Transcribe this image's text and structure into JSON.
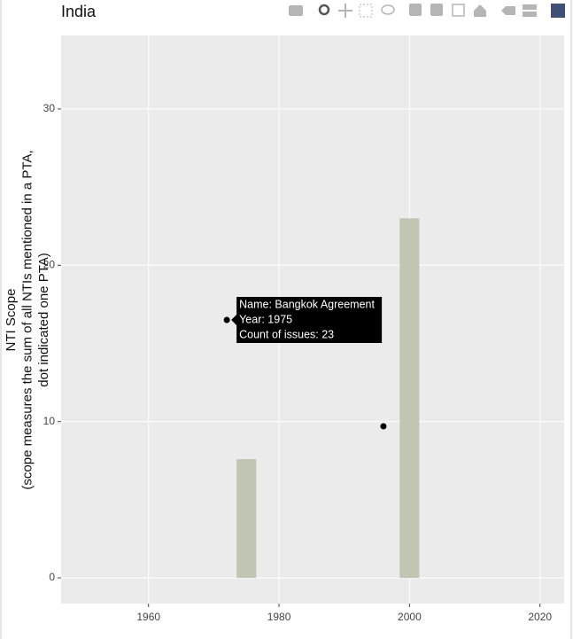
{
  "chart_data": {
    "type": "bar",
    "title": "India",
    "ylabel": [
      "NTI Scope",
      "(scope measures the sum of all NTIs mentioned in a PTA,",
      "dot indicated one PTA)"
    ],
    "series": [
      {
        "type": "bar",
        "x": [
          1975,
          2000
        ],
        "values": [
          7.6,
          23
        ],
        "color": "#c0c6b2",
        "bar_width": 3
      },
      {
        "type": "scatter",
        "x": [
          1972,
          1996
        ],
        "values": [
          16.5,
          9.7
        ],
        "color": "#000000"
      }
    ],
    "hover_label": [
      "Name: Bangkok Agreement",
      "Year: 1975",
      "Count of issues: 23"
    ],
    "xlim": [
      1946.6,
      2023.7
    ],
    "ylim": [
      -1.64,
      34.7
    ],
    "xticks": [
      1960,
      1980,
      2000,
      2020
    ],
    "yticks": [
      0,
      10,
      20,
      30
    ],
    "grid": true
  }
}
